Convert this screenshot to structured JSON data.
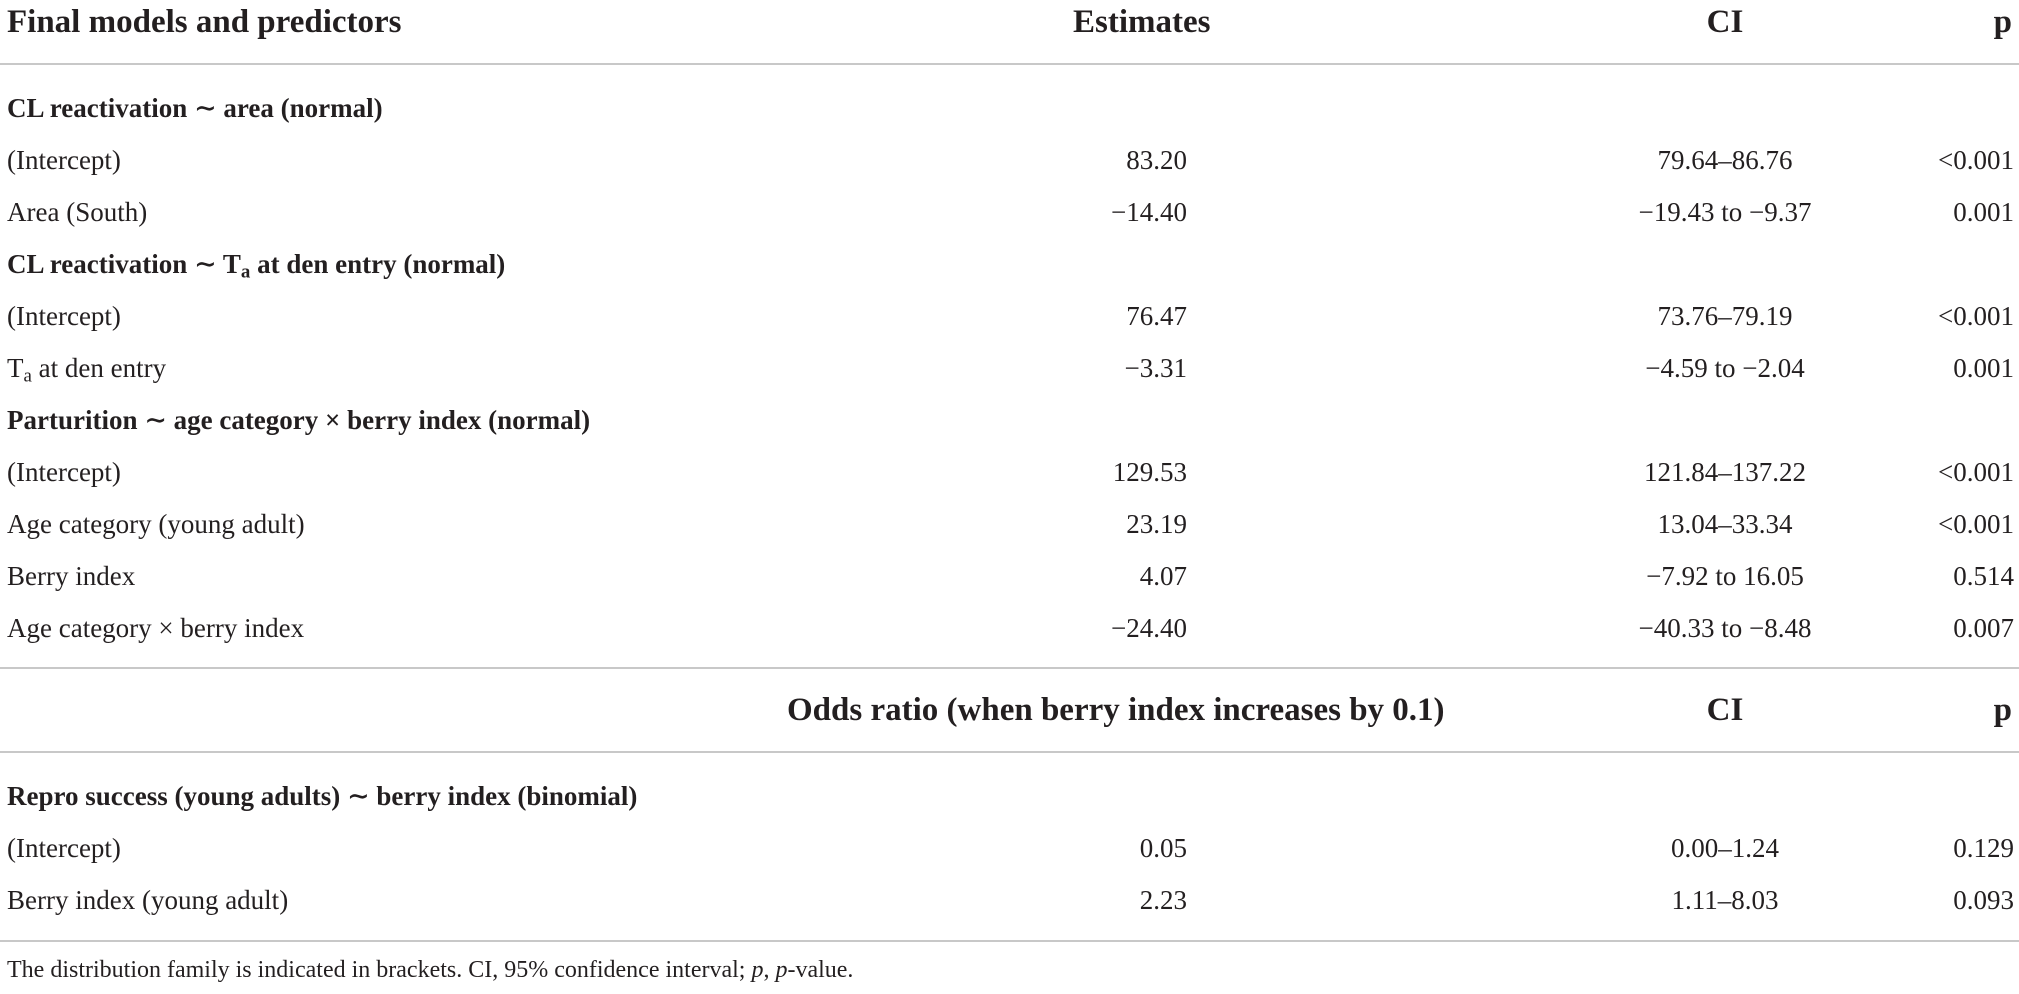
{
  "header1": {
    "col1": "Final models and predictors",
    "col2": "Estimates",
    "col3": "CI",
    "col4": "p"
  },
  "block1": {
    "section1": "CL reactivation ∼ area (normal)",
    "rows1": [
      {
        "label": "(Intercept)",
        "est": "83.20",
        "ci": "79.64–86.76",
        "p": "<0.001"
      },
      {
        "label": "Area (South)",
        "est": "−14.40",
        "ci": "−19.43 to −9.37",
        "p": "0.001"
      }
    ],
    "section2_pre": "CL reactivation ∼ T",
    "section2_sub": "a",
    "section2_post": " at den entry (normal)",
    "rows2": [
      {
        "label": "(Intercept)",
        "est": "76.47",
        "ci": "73.76–79.19",
        "p": "<0.001"
      },
      {
        "label_pre": "T",
        "label_sub": "a",
        "label_post": " at den entry",
        "est": "−3.31",
        "ci": "−4.59 to −2.04",
        "p": "0.001"
      }
    ],
    "section3": "Parturition ∼ age category × berry index (normal)",
    "rows3": [
      {
        "label": "(Intercept)",
        "est": "129.53",
        "ci": "121.84–137.22",
        "p": "<0.001"
      },
      {
        "label": "Age category (young adult)",
        "est": "23.19",
        "ci": "13.04–33.34",
        "p": "<0.001"
      },
      {
        "label": "Berry index",
        "est": "4.07",
        "ci": "−7.92 to 16.05",
        "p": "0.514"
      },
      {
        "label": "Age category × berry index",
        "est": "−24.40",
        "ci": "−40.33 to −8.48",
        "p": "0.007"
      }
    ]
  },
  "header2": {
    "col2": "Odds ratio (when berry index increases by 0.1)",
    "col3": "CI",
    "col4": "p"
  },
  "block2": {
    "section": "Repro success (young adults) ∼ berry index (binomial)",
    "rows": [
      {
        "label": "(Intercept)",
        "est": "0.05",
        "ci": "0.00–1.24",
        "p": "0.129"
      },
      {
        "label": "Berry index (young adult)",
        "est": "2.23",
        "ci": "1.11–8.03",
        "p": "0.093"
      }
    ]
  },
  "footnote": {
    "pre": "The distribution family is indicated in brackets. CI, 95% confidence interval; ",
    "p_italic": "p",
    "mid": ", ",
    "p_italic2": "p",
    "post": "-value."
  }
}
